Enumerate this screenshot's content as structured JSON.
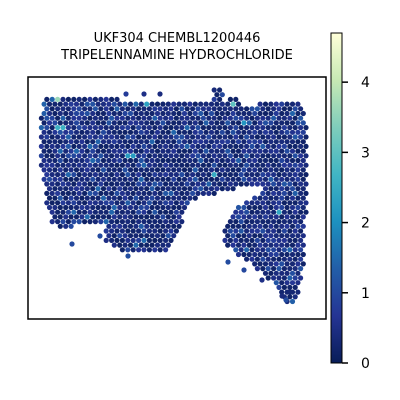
{
  "chart_data": {
    "type": "heatmap",
    "subtype": "hexbin spatial spot map",
    "title_lines": [
      "UKF304 CHEMBL1200446",
      "TRIPELENNAMINE HYDROCHLORIDE"
    ],
    "xlabel": "",
    "ylabel": "",
    "grid": false,
    "legend": "none",
    "colorbar": {
      "placement": "right",
      "range": [
        0,
        4.7
      ],
      "ticks": [
        0,
        1,
        2,
        3,
        4
      ],
      "tick_labels": [
        "0",
        "1",
        "2",
        "3",
        "4"
      ],
      "colormap": "YlGnBu",
      "stops": [
        "#081d58",
        "#253494",
        "#225ea8",
        "#1d91c0",
        "#41b6c4",
        "#7fcdbb",
        "#c7e9b4",
        "#ffffd9"
      ]
    },
    "regions": [
      {
        "name": "upper band",
        "value_range": [
          0.2,
          1.2
        ],
        "dominant_value": 0.5
      },
      {
        "name": "left lobe",
        "value_range": [
          0.1,
          1.0
        ],
        "dominant_value": 0.4
      },
      {
        "name": "center lower lobe",
        "value_range": [
          0.1,
          1.0
        ],
        "dominant_value": 0.4
      },
      {
        "name": "right lobe",
        "value_range": [
          0.1,
          1.3
        ],
        "dominant_value": 0.5
      }
    ],
    "highlight_spots": [
      {
        "location": "top-left",
        "value": 3.6
      },
      {
        "location": "top-left",
        "value": 2.6
      },
      {
        "location": "top-center",
        "value": 2.3
      },
      {
        "location": "top-center",
        "value": 2.0
      },
      {
        "location": "center",
        "value": 2.2
      },
      {
        "location": "center-right",
        "value": 2.5
      },
      {
        "location": "top-right",
        "value": 3.0
      },
      {
        "location": "top-right",
        "value": 2.1
      },
      {
        "location": "right",
        "value": 2.4
      }
    ],
    "value_max": 4.7
  }
}
